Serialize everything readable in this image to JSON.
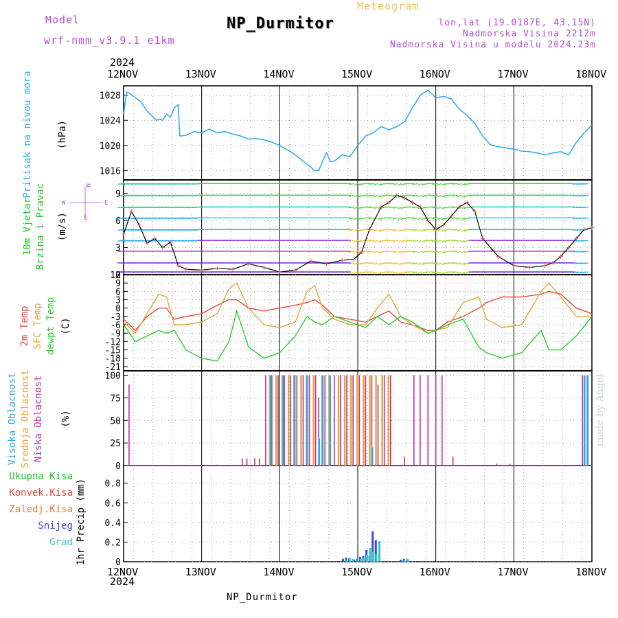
{
  "header": {
    "model_label": "Model",
    "model_name": "wrf-nmm_v3.9.1 e1km",
    "title": "NP_Durmitor",
    "subtitle": "Meteogram",
    "lonlat": "lon,lat (19.0187E, 43.15N)",
    "elevation": "Nadmorska Visina 2212m",
    "model_elevation": "Nadmorska Visina u modelu 2024.23m",
    "year": "2024",
    "footer": "NP_Durmitor",
    "made_by": "made by Angel"
  },
  "colors": {
    "pressure": "#2aa8e6",
    "wind_label": "#22c422",
    "temp2m": "#e8483c",
    "sfc": "#e0a93a",
    "dew": "#2ecc2e",
    "high_cloud": "#2aa8e6",
    "mid_cloud": "#e0a93a",
    "low_cloud": "#c0309a",
    "total_rain": "#22c422",
    "conv_rain": "#e8483c",
    "frz_rain": "#f07a30",
    "snow": "#3e4ad8",
    "graupel": "#32c8c8"
  },
  "chart_data": [
    {
      "type": "line",
      "panel": "pressure",
      "ylabel_left": "Pritisak na nivou mora",
      "ylabel_unit": "(hPa)",
      "x_ticks": [
        "12NOV",
        "13NOV",
        "14NOV",
        "15NOV",
        "16NOV",
        "17NOV",
        "18NOV"
      ],
      "ylim": [
        1014.5,
        1029.5
      ],
      "yticks": [
        "1016",
        "1020",
        "1024",
        "1028"
      ],
      "x_days": [
        0,
        0.04,
        0.08,
        0.15,
        0.22,
        0.3,
        0.38,
        0.42,
        0.46,
        0.5,
        0.55,
        0.6,
        0.65,
        0.7,
        0.72,
        0.8,
        0.9,
        1.0,
        1.1,
        1.2,
        1.3,
        1.4,
        1.5,
        1.6,
        1.7,
        1.8,
        1.9,
        2.0,
        2.1,
        2.2,
        2.3,
        2.4,
        2.45,
        2.5,
        2.55,
        2.6,
        2.65,
        2.7,
        2.8,
        2.9,
        3.0,
        3.1,
        3.2,
        3.3,
        3.4,
        3.5,
        3.6,
        3.7,
        3.8,
        3.9,
        4.0,
        4.1,
        4.2,
        4.3,
        4.4,
        4.5,
        4.6,
        4.7,
        4.8,
        4.9,
        5.0,
        5.1,
        5.2,
        5.3,
        5.4,
        5.5,
        5.6,
        5.7,
        5.8,
        5.9,
        6.0
      ],
      "values": [
        1025,
        1028.5,
        1028.3,
        1027.6,
        1027,
        1025.5,
        1024.5,
        1024,
        1024.2,
        1024,
        1025,
        1024.5,
        1026,
        1026.5,
        1021.5,
        1021.6,
        1022.2,
        1022,
        1022.6,
        1022,
        1022.2,
        1021.8,
        1021.5,
        1021,
        1021.1,
        1020.9,
        1020.5,
        1020,
        1019.3,
        1018.5,
        1017.5,
        1016.5,
        1016,
        1016,
        1017.5,
        1018.8,
        1017.4,
        1017.5,
        1018.5,
        1018.2,
        1020,
        1021.5,
        1022,
        1023,
        1022.5,
        1023,
        1023.8,
        1026,
        1028,
        1028.8,
        1027.6,
        1027.8,
        1027.4,
        1025.8,
        1024.8,
        1023.5,
        1021.5,
        1020.1,
        1019.8,
        1019.6,
        1019.4,
        1019.1,
        1019,
        1018.8,
        1018.5,
        1018.8,
        1019,
        1018.5,
        1020.5,
        1022,
        1023.2
      ]
    },
    {
      "type": "line",
      "panel": "wind",
      "ylabel_left": "10m Vjetar",
      "ylabel_left2": "Brzina i Pravac",
      "ylabel_unit": "(m/s)",
      "compass": {
        "n": "N",
        "s": "S",
        "w": "W",
        "e": "E"
      },
      "ylim": [
        0,
        10.5
      ],
      "yticks": [
        "0",
        "3",
        "6",
        "9"
      ],
      "arrow_rows": [
        0.3,
        1.3,
        2.6,
        3.8,
        5.0,
        6.3,
        7.5,
        8.8,
        10.1
      ],
      "x_days": [
        0,
        0.1,
        0.2,
        0.3,
        0.4,
        0.5,
        0.6,
        0.7,
        0.8,
        1.0,
        1.2,
        1.4,
        1.6,
        1.8,
        2.0,
        2.2,
        2.4,
        2.6,
        2.8,
        2.95,
        3.05,
        3.15,
        3.3,
        3.4,
        3.5,
        3.6,
        3.7,
        3.8,
        3.9,
        4.0,
        4.1,
        4.2,
        4.3,
        4.4,
        4.5,
        4.6,
        4.8,
        5.0,
        5.2,
        5.4,
        5.5,
        5.6,
        5.7,
        5.8,
        5.9,
        6.0
      ],
      "values": [
        4.5,
        7,
        5.5,
        3.5,
        4,
        3,
        3.6,
        1,
        0.6,
        0.5,
        0.7,
        0.6,
        1.2,
        0.8,
        0.3,
        0.5,
        1.5,
        1.2,
        1.6,
        1.7,
        2.5,
        5,
        7.5,
        8,
        8.8,
        8.5,
        8,
        7.5,
        6,
        5,
        5.5,
        6.5,
        7.5,
        8,
        7,
        4,
        2,
        1,
        0.8,
        1,
        1.3,
        2,
        3,
        4,
        5,
        5.2
      ]
    },
    {
      "type": "line",
      "panel": "temperature",
      "ylabel_left": "2m Temp",
      "ylabel_left2": "SFC Temp",
      "ylabel_left3": "dewpt Temp",
      "ylabel_unit": "(C)",
      "ylim": [
        -22.5,
        12
      ],
      "yticks": [
        "12",
        "9",
        "6",
        "3",
        "0",
        "-3",
        "-6",
        "-9",
        "-12",
        "-15",
        "-18",
        "-21"
      ],
      "x_days": [
        0,
        0.15,
        0.3,
        0.45,
        0.55,
        0.65,
        0.8,
        1.0,
        1.2,
        1.35,
        1.45,
        1.6,
        1.8,
        2.0,
        2.2,
        2.35,
        2.45,
        2.55,
        2.7,
        2.9,
        3.1,
        3.25,
        3.4,
        3.55,
        3.7,
        3.9,
        4.0,
        4.15,
        4.35,
        4.55,
        4.65,
        4.85,
        5.1,
        5.35,
        5.45,
        5.6,
        5.8,
        6.0
      ],
      "series": [
        {
          "key": "temp2m",
          "values": [
            -4,
            -8,
            -3,
            0,
            0,
            -4,
            -3,
            -2,
            1,
            3,
            3,
            0,
            -1,
            0,
            1,
            2,
            3,
            1,
            -3,
            -4,
            -5,
            -3,
            -1,
            -5,
            -6,
            -8,
            -8,
            -5,
            -3,
            0,
            2,
            4,
            4,
            5,
            6,
            5,
            0,
            -2
          ]
        },
        {
          "key": "sfc",
          "values": [
            -5,
            -9,
            -2,
            5,
            4,
            -6,
            -6,
            -5,
            -2,
            7,
            9,
            0,
            -6,
            -7,
            -5,
            6,
            8,
            0,
            -4,
            -6,
            -6,
            0,
            5,
            -3,
            -6,
            -9,
            -8,
            -7,
            2,
            4,
            -4,
            -7,
            -6,
            6,
            9,
            4,
            -3,
            -3
          ]
        },
        {
          "key": "dew",
          "values": [
            -6,
            -12,
            -10,
            -8,
            -9,
            -8,
            -15,
            -18,
            -19,
            -12,
            -1,
            -14,
            -18,
            -16,
            -10,
            -3,
            -5,
            -6,
            -3,
            -5,
            -7,
            -3,
            -6,
            -3,
            -5,
            -9,
            -8,
            -6,
            -4,
            -14,
            -16,
            -18,
            -16,
            -8,
            -15,
            -15,
            -10,
            -3
          ]
        }
      ]
    },
    {
      "type": "bar",
      "panel": "cloud",
      "ylabel_left": "Visoka Oblacnost",
      "ylabel_left2": "Srednja Oblacnost",
      "ylabel_left3": "Niska Oblacnost",
      "ylabel_unit": "(%)",
      "ylim": [
        0,
        105
      ],
      "yticks": [
        "0",
        "25",
        "50",
        "75",
        "100"
      ],
      "low_cloud": [
        [
          0.07,
          90
        ],
        [
          1.2,
          1
        ],
        [
          1.52,
          8
        ],
        [
          1.58,
          8
        ],
        [
          1.68,
          8
        ],
        [
          1.74,
          8
        ],
        [
          1.82,
          100
        ],
        [
          1.9,
          100
        ],
        [
          1.98,
          100
        ],
        [
          2.06,
          100
        ],
        [
          2.14,
          100
        ],
        [
          2.22,
          100
        ],
        [
          2.3,
          100
        ],
        [
          2.38,
          100
        ],
        [
          2.46,
          100
        ],
        [
          2.5,
          75
        ],
        [
          2.58,
          100
        ],
        [
          2.7,
          100
        ],
        [
          2.78,
          100
        ],
        [
          2.86,
          100
        ],
        [
          2.94,
          100
        ],
        [
          3.02,
          100
        ],
        [
          3.1,
          100
        ],
        [
          3.18,
          100
        ],
        [
          3.26,
          90
        ],
        [
          3.34,
          100
        ],
        [
          3.42,
          100
        ],
        [
          3.6,
          10
        ],
        [
          3.72,
          100
        ],
        [
          3.8,
          100
        ],
        [
          3.9,
          100
        ],
        [
          4.0,
          100
        ],
        [
          4.08,
          100
        ],
        [
          4.22,
          10
        ],
        [
          4.78,
          2
        ],
        [
          4.95,
          2
        ],
        [
          5.88,
          100
        ],
        [
          5.94,
          100
        ]
      ],
      "mid_cloud": [
        [
          1.86,
          100
        ],
        [
          1.94,
          100
        ],
        [
          2.02,
          100
        ],
        [
          2.1,
          100
        ],
        [
          2.18,
          100
        ],
        [
          2.26,
          100
        ],
        [
          2.34,
          100
        ],
        [
          2.42,
          100
        ],
        [
          2.54,
          100
        ],
        [
          2.62,
          100
        ],
        [
          2.74,
          100
        ],
        [
          2.82,
          100
        ],
        [
          2.9,
          100
        ],
        [
          2.98,
          100
        ],
        [
          3.06,
          100
        ],
        [
          3.14,
          100
        ],
        [
          3.22,
          100
        ],
        [
          3.3,
          100
        ],
        [
          3.38,
          100
        ]
      ],
      "high_cloud": [
        [
          1.9,
          100
        ],
        [
          2.06,
          100
        ],
        [
          2.2,
          100
        ],
        [
          2.36,
          100
        ],
        [
          2.52,
          30
        ],
        [
          2.56,
          100
        ],
        [
          2.66,
          100
        ],
        [
          3.2,
          20
        ],
        [
          5.92,
          100
        ],
        [
          5.96,
          100
        ]
      ]
    },
    {
      "type": "bar",
      "panel": "precip",
      "legend": [
        "Ukupna Kisa",
        "Konvek.Kisa",
        "Zaledj.Kisa",
        "Snijeg",
        "Grad"
      ],
      "ylabel_unit": "1hr Precip (mm)",
      "ylim": [
        0,
        0.98
      ],
      "yticks": [
        "0",
        "0.2",
        "0.4",
        "0.6",
        "0.8"
      ],
      "x_ticks": [
        "12NOV",
        "13NOV",
        "14NOV",
        "15NOV",
        "16NOV",
        "17NOV",
        "18NOV"
      ],
      "snow": [
        [
          2.82,
          0.03
        ],
        [
          2.86,
          0.04
        ],
        [
          2.9,
          0.03
        ],
        [
          2.96,
          0.02
        ],
        [
          3.0,
          0.03
        ],
        [
          3.04,
          0.05
        ],
        [
          3.08,
          0.06
        ],
        [
          3.12,
          0.12
        ],
        [
          3.16,
          0.06
        ],
        [
          3.2,
          0.31
        ],
        [
          3.24,
          0.22
        ],
        [
          3.56,
          0.02
        ],
        [
          3.6,
          0.03
        ],
        [
          3.64,
          0.02
        ]
      ],
      "graupel": [
        [
          2.84,
          0.02
        ],
        [
          2.88,
          0.04
        ],
        [
          2.92,
          0.03
        ],
        [
          2.98,
          0.02
        ],
        [
          3.02,
          0.03
        ],
        [
          3.06,
          0.04
        ],
        [
          3.1,
          0.07
        ],
        [
          3.14,
          0.14
        ],
        [
          3.18,
          0.1
        ],
        [
          3.22,
          0.08
        ],
        [
          3.26,
          0.21
        ],
        [
          3.58,
          0.02
        ],
        [
          3.62,
          0.03
        ]
      ]
    }
  ]
}
